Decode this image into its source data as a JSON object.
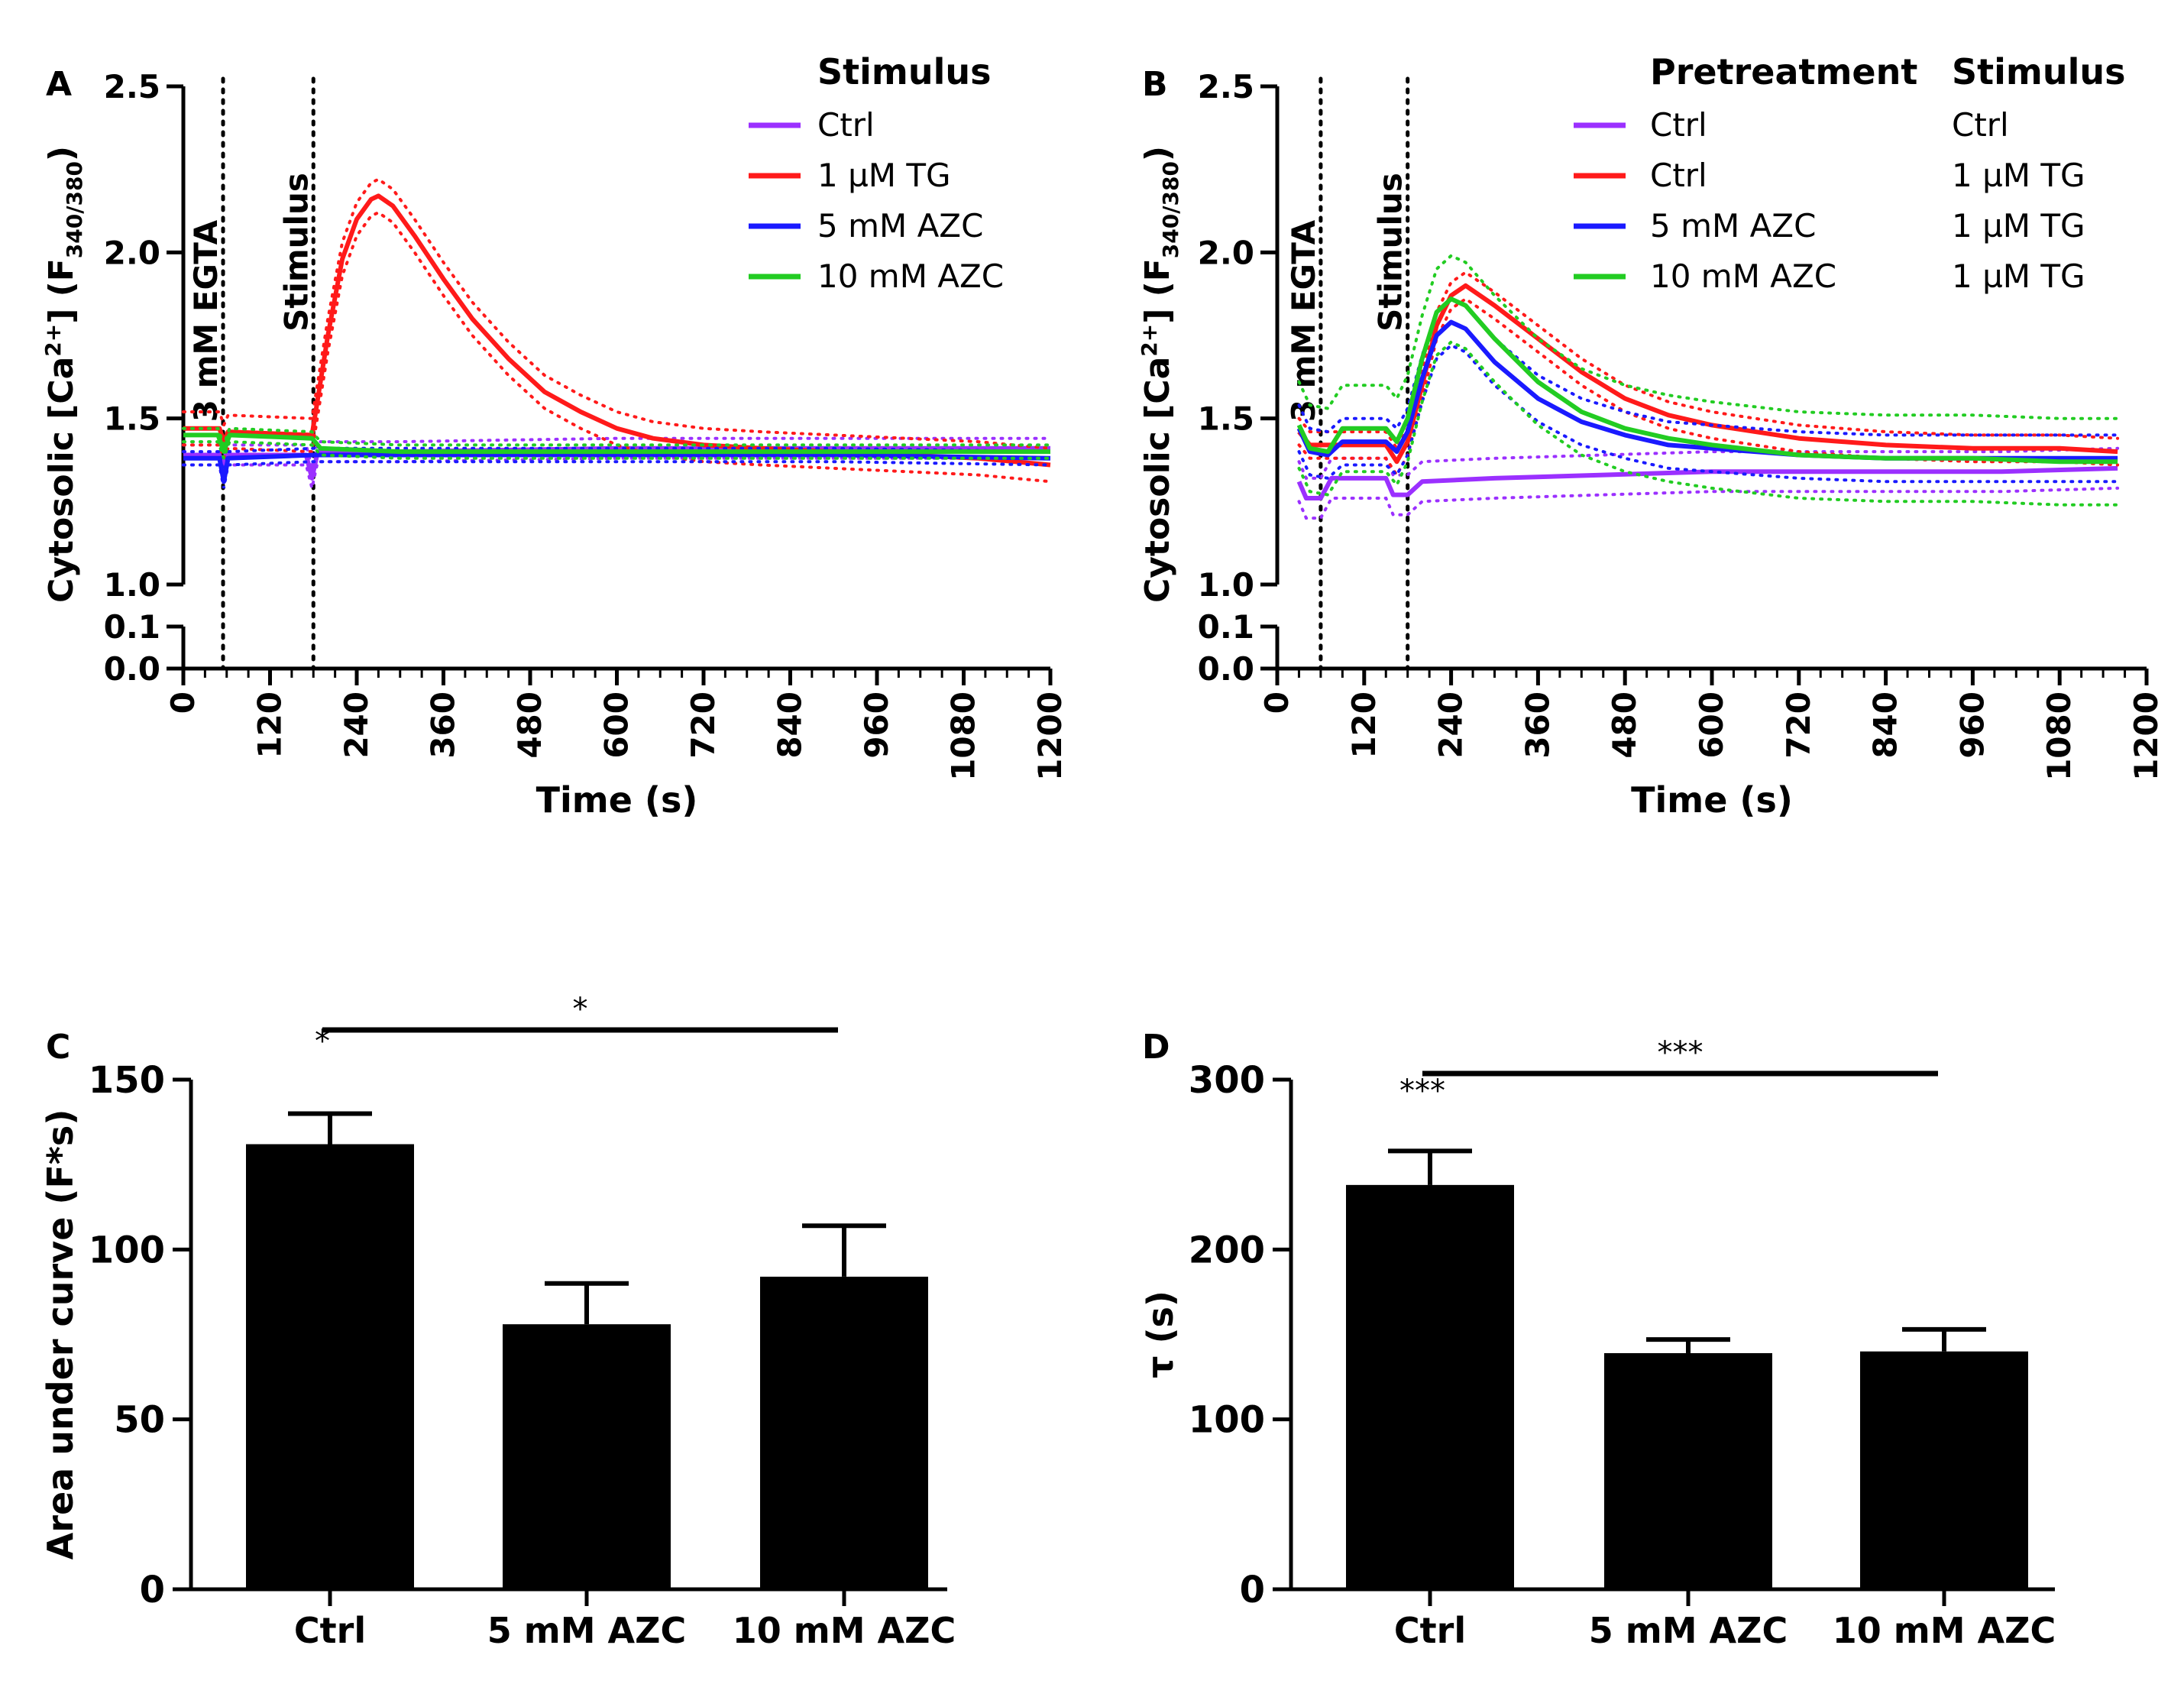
{
  "chart_data": [
    {
      "panel": "A",
      "type": "line",
      "ylabel_main": "Cytosolic [Ca",
      "ylabel_sup": "2+",
      "ylabel_mid": "] (F",
      "ylabel_sub": "340/380",
      "ylabel_end": ")",
      "xlabel": "Time (s)",
      "xlim": [
        0,
        1200
      ],
      "ylim_upper": [
        1.0,
        2.5
      ],
      "ylim_lower": [
        0.0,
        0.1
      ],
      "xticks": [
        "0",
        "120",
        "240",
        "360",
        "480",
        "600",
        "720",
        "840",
        "960",
        "1080",
        "1200"
      ],
      "yticks_upper": [
        "1.0",
        "1.5",
        "2.0",
        "2.5"
      ],
      "yticks_lower": [
        "0.0",
        "0.1"
      ],
      "events": [
        {
          "label": "3 mM EGTA",
          "x": 55
        },
        {
          "label": "Stimulus",
          "x": 180
        }
      ],
      "legend_headers": [
        "Stimulus"
      ],
      "series": [
        {
          "name": "Ctrl",
          "color": "#9b30ff",
          "band": 0.03,
          "points": [
            [
              0,
              1.39
            ],
            [
              50,
              1.39
            ],
            [
              55,
              1.33
            ],
            [
              60,
              1.39
            ],
            [
              170,
              1.39
            ],
            [
              178,
              1.32
            ],
            [
              186,
              1.4
            ],
            [
              300,
              1.4
            ],
            [
              600,
              1.41
            ],
            [
              900,
              1.41
            ],
            [
              1200,
              1.41
            ]
          ]
        },
        {
          "name": "1 µM TG",
          "color": "#ff1a1a",
          "band": 0.05,
          "points": [
            [
              0,
              1.47
            ],
            [
              50,
              1.47
            ],
            [
              56,
              1.43
            ],
            [
              62,
              1.46
            ],
            [
              178,
              1.45
            ],
            [
              200,
              1.75
            ],
            [
              220,
              1.98
            ],
            [
              240,
              2.1
            ],
            [
              260,
              2.16
            ],
            [
              270,
              2.17
            ],
            [
              290,
              2.14
            ],
            [
              320,
              2.05
            ],
            [
              360,
              1.92
            ],
            [
              400,
              1.8
            ],
            [
              450,
              1.68
            ],
            [
              500,
              1.58
            ],
            [
              550,
              1.52
            ],
            [
              600,
              1.47
            ],
            [
              650,
              1.44
            ],
            [
              720,
              1.42
            ],
            [
              800,
              1.41
            ],
            [
              900,
              1.4
            ],
            [
              1000,
              1.39
            ],
            [
              1100,
              1.38
            ],
            [
              1200,
              1.36
            ]
          ]
        },
        {
          "name": "5 mM AZC",
          "color": "#1a1aff",
          "band": 0.02,
          "points": [
            [
              0,
              1.38
            ],
            [
              50,
              1.38
            ],
            [
              56,
              1.31
            ],
            [
              62,
              1.38
            ],
            [
              180,
              1.39
            ],
            [
              300,
              1.39
            ],
            [
              600,
              1.39
            ],
            [
              900,
              1.39
            ],
            [
              1200,
              1.38
            ]
          ]
        },
        {
          "name": "10 mM AZC",
          "color": "#22cc22",
          "band": 0.02,
          "points": [
            [
              0,
              1.45
            ],
            [
              48,
              1.45
            ],
            [
              56,
              1.4
            ],
            [
              64,
              1.45
            ],
            [
              178,
              1.44
            ],
            [
              190,
              1.41
            ],
            [
              300,
              1.4
            ],
            [
              600,
              1.4
            ],
            [
              900,
              1.4
            ],
            [
              1200,
              1.4
            ]
          ]
        }
      ],
      "legend_rows": [
        [
          "Ctrl"
        ],
        [
          "1 µM TG"
        ],
        [
          "5 mM AZC"
        ],
        [
          "10 mM AZC"
        ]
      ]
    },
    {
      "panel": "B",
      "type": "line",
      "ylabel_main": "Cytosolic [Ca",
      "ylabel_sup": "2+",
      "ylabel_mid": "] (F",
      "ylabel_sub": "340/380",
      "ylabel_end": ")",
      "xlabel": "Time (s)",
      "xlim": [
        0,
        1200
      ],
      "ylim_upper": [
        1.0,
        2.5
      ],
      "ylim_lower": [
        0.0,
        0.1
      ],
      "xticks": [
        "0",
        "120",
        "240",
        "360",
        "480",
        "600",
        "720",
        "840",
        "960",
        "1080",
        "1200"
      ],
      "yticks_upper": [
        "1.0",
        "1.5",
        "2.0",
        "2.5"
      ],
      "yticks_lower": [
        "0.0",
        "0.1"
      ],
      "events": [
        {
          "label": "3 mM EGTA",
          "x": 60
        },
        {
          "label": "Stimulus",
          "x": 180
        }
      ],
      "legend_headers": [
        "Pretreatment",
        "Stimulus"
      ],
      "series": [
        {
          "name": "Ctrl / Ctrl",
          "color": "#9b30ff",
          "band": 0.06,
          "points": [
            [
              30,
              1.31
            ],
            [
              40,
              1.26
            ],
            [
              60,
              1.26
            ],
            [
              75,
              1.32
            ],
            [
              150,
              1.32
            ],
            [
              160,
              1.27
            ],
            [
              180,
              1.27
            ],
            [
              200,
              1.31
            ],
            [
              300,
              1.32
            ],
            [
              450,
              1.33
            ],
            [
              600,
              1.34
            ],
            [
              750,
              1.34
            ],
            [
              900,
              1.34
            ],
            [
              1000,
              1.34
            ],
            [
              1160,
              1.35
            ]
          ]
        },
        {
          "name": "Ctrl / 1 µM TG",
          "color": "#ff1a1a",
          "band": 0.04,
          "points": [
            [
              30,
              1.46
            ],
            [
              45,
              1.42
            ],
            [
              70,
              1.42
            ],
            [
              90,
              1.42
            ],
            [
              150,
              1.42
            ],
            [
              165,
              1.37
            ],
            [
              180,
              1.43
            ],
            [
              200,
              1.6
            ],
            [
              220,
              1.78
            ],
            [
              240,
              1.87
            ],
            [
              260,
              1.9
            ],
            [
              300,
              1.84
            ],
            [
              360,
              1.74
            ],
            [
              420,
              1.64
            ],
            [
              480,
              1.56
            ],
            [
              540,
              1.51
            ],
            [
              600,
              1.48
            ],
            [
              720,
              1.44
            ],
            [
              840,
              1.42
            ],
            [
              960,
              1.41
            ],
            [
              1080,
              1.41
            ],
            [
              1160,
              1.4
            ]
          ]
        },
        {
          "name": "5 mM AZC / 1 µM TG",
          "color": "#1a1aff",
          "band": 0.07,
          "points": [
            [
              30,
              1.47
            ],
            [
              45,
              1.4
            ],
            [
              70,
              1.39
            ],
            [
              90,
              1.43
            ],
            [
              150,
              1.43
            ],
            [
              165,
              1.4
            ],
            [
              180,
              1.46
            ],
            [
              200,
              1.62
            ],
            [
              220,
              1.75
            ],
            [
              240,
              1.79
            ],
            [
              260,
              1.77
            ],
            [
              300,
              1.67
            ],
            [
              360,
              1.56
            ],
            [
              420,
              1.49
            ],
            [
              480,
              1.45
            ],
            [
              540,
              1.42
            ],
            [
              600,
              1.41
            ],
            [
              720,
              1.39
            ],
            [
              840,
              1.38
            ],
            [
              960,
              1.38
            ],
            [
              1080,
              1.38
            ],
            [
              1160,
              1.38
            ]
          ]
        },
        {
          "name": "10 mM AZC / 1 µM TG",
          "color": "#22cc22",
          "band": 0.13,
          "points": [
            [
              30,
              1.48
            ],
            [
              45,
              1.41
            ],
            [
              70,
              1.4
            ],
            [
              90,
              1.47
            ],
            [
              150,
              1.47
            ],
            [
              165,
              1.43
            ],
            [
              180,
              1.5
            ],
            [
              200,
              1.68
            ],
            [
              220,
              1.82
            ],
            [
              240,
              1.86
            ],
            [
              260,
              1.84
            ],
            [
              300,
              1.74
            ],
            [
              360,
              1.61
            ],
            [
              420,
              1.52
            ],
            [
              480,
              1.47
            ],
            [
              540,
              1.44
            ],
            [
              600,
              1.42
            ],
            [
              720,
              1.39
            ],
            [
              840,
              1.38
            ],
            [
              960,
              1.38
            ],
            [
              1080,
              1.37
            ],
            [
              1160,
              1.37
            ]
          ]
        }
      ],
      "legend_rows": [
        [
          "Ctrl",
          "Ctrl"
        ],
        [
          "Ctrl",
          "1 µM TG"
        ],
        [
          "5 mM AZC",
          "1 µM TG"
        ],
        [
          "10 mM AZC",
          "1 µM TG"
        ]
      ]
    },
    {
      "panel": "C",
      "type": "bar",
      "ylabel": "Area under curve (F*s)",
      "xlabel": "",
      "ylim": [
        0,
        150
      ],
      "yticks": [
        "0",
        "50",
        "100",
        "150"
      ],
      "categories": [
        "Ctrl",
        "5 mM AZC",
        "10 mM AZC"
      ],
      "values": [
        131,
        78,
        92
      ],
      "errors": [
        9,
        12,
        15
      ],
      "significance": [
        {
          "from": 0,
          "to": 1,
          "label": "*"
        },
        {
          "from": 0,
          "to": 2,
          "label": "*"
        }
      ]
    },
    {
      "panel": "D",
      "type": "bar",
      "ylabel": "τ (s)",
      "xlabel": "",
      "ylim": [
        0,
        300
      ],
      "yticks": [
        "0",
        "100",
        "200",
        "300"
      ],
      "categories": [
        "Ctrl",
        "5 mM AZC",
        "10 mM AZC"
      ],
      "values": [
        238,
        139,
        140
      ],
      "errors": [
        20,
        8,
        13
      ],
      "significance": [
        {
          "from": 0,
          "to": 1,
          "label": "***"
        },
        {
          "from": 0,
          "to": 2,
          "label": "***"
        }
      ]
    }
  ]
}
